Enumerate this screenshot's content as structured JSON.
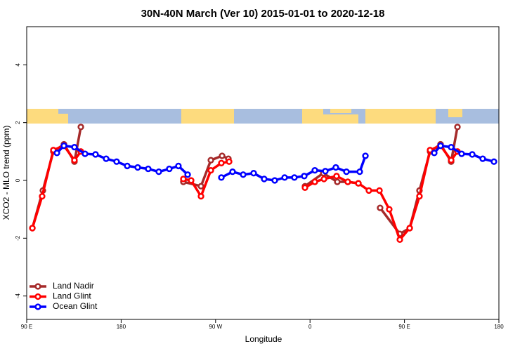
{
  "chart_data": {
    "type": "line",
    "title": "30N-40N March (Ver 10)   2015-01-01 to 2020-12-18",
    "x_label": "Longitude",
    "y_label": "XCO2 - MLO trend (ppm)",
    "xlim": [
      90,
      540
    ],
    "ylim": [
      -4.81,
      5.32
    ],
    "xticks": [
      {
        "value": 90,
        "label": "90 E"
      },
      180,
      {
        "value": 270,
        "label": "90 W"
      },
      {
        "value": 360,
        "label": "0"
      },
      {
        "value": 450,
        "label": "90 E"
      },
      {
        "value": 540,
        "label": "180"
      }
    ],
    "yticks": [
      -4,
      -2,
      0,
      2,
      4
    ],
    "legend": "bottom-left",
    "series": [
      {
        "name": "Land Nadir",
        "color": "#a52a2a",
        "x": [
          95.4,
          105.4,
          115.4,
          125.5,
          135.5,
          141.6,
          null,
          239.3,
          256.1,
          265.5,
          276.2,
          282.2,
          null,
          355.2,
          372.6,
          386,
          396,
          406.1,
          null,
          426.8,
          445.6,
          455,
          464.3,
          474.4,
          484.4,
          494.5,
          500.5
        ],
        "values": [
          -1.65,
          -0.35,
          1.0,
          1.25,
          0.65,
          1.85,
          null,
          -0.05,
          -0.2,
          0.7,
          0.85,
          0.75,
          null,
          -0.2,
          0.25,
          -0.05,
          -0.05,
          -0.1,
          null,
          -0.95,
          -1.85,
          -1.65,
          -0.35,
          1.0,
          1.25,
          0.65,
          1.85
        ]
      },
      {
        "name": "Land Glint",
        "color": "#ff0000",
        "x": [
          95.4,
          104.7,
          115.4,
          125.5,
          135.5,
          141.6,
          null,
          239.3,
          246.7,
          256.1,
          265.5,
          275.5,
          282.9,
          null,
          355.2,
          364.6,
          373.3,
          385.3,
          396,
          406.1,
          416.1,
          426.2,
          435.5,
          445.6,
          455,
          464.3,
          474.4,
          484.4,
          494.5,
          500.5
        ],
        "values": [
          -1.65,
          -0.55,
          1.05,
          1.2,
          0.7,
          1.0,
          null,
          0.05,
          0,
          -0.55,
          0.35,
          0.6,
          0.65,
          null,
          -0.25,
          -0.05,
          0.05,
          0.15,
          -0.05,
          -0.1,
          -0.35,
          -0.35,
          -1.0,
          -2.05,
          -1.65,
          -0.55,
          1.05,
          1.2,
          0.7,
          1.0
        ]
      },
      {
        "name": "Ocean Glint",
        "color": "#0000ff",
        "x": [
          118.8,
          125.5,
          135.5,
          145.6,
          155.6,
          165.7,
          175.7,
          185.8,
          195.8,
          205.8,
          215.9,
          225.9,
          234.6,
          243.4,
          null,
          275.5,
          286.2,
          296.3,
          306.3,
          316.3,
          326.4,
          335.8,
          345.1,
          354.5,
          364.6,
          374.6,
          384.6,
          394.7,
          407.4,
          412.8,
          null,
          478.4,
          484.4,
          494.5,
          504.5,
          514.6,
          524.6,
          535.3
        ],
        "values": [
          0.95,
          1.2,
          1.15,
          0.92,
          0.9,
          0.75,
          0.65,
          0.5,
          0.45,
          0.4,
          0.3,
          0.4,
          0.5,
          0.2,
          null,
          0.1,
          0.3,
          0.2,
          0.25,
          0.05,
          0,
          0.1,
          0.1,
          0.15,
          0.35,
          0.32,
          0.45,
          0.3,
          0.3,
          0.85,
          null,
          0.95,
          1.2,
          1.15,
          0.92,
          0.9,
          0.75,
          0.65
        ]
      }
    ]
  }
}
